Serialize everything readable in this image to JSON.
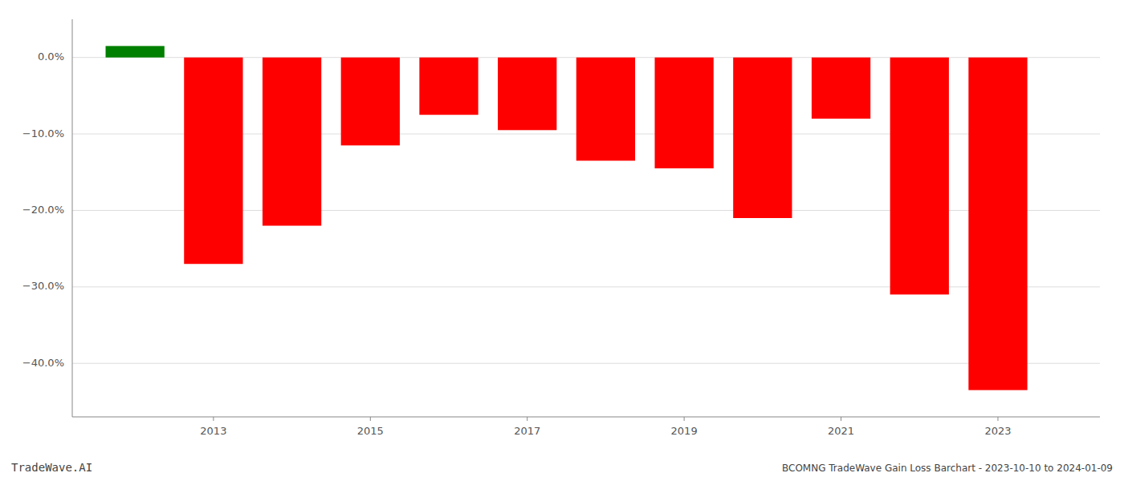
{
  "chart_data": {
    "type": "bar",
    "x": [
      2012,
      2013,
      2014,
      2015,
      2016,
      2017,
      2018,
      2019,
      2020,
      2021,
      2022,
      2023
    ],
    "values": [
      1.5,
      -27.0,
      -22.0,
      -11.5,
      -7.5,
      -9.5,
      -13.5,
      -14.5,
      -21.0,
      -8.0,
      -31.0,
      -43.5
    ],
    "colors": [
      "#008000",
      "#FF0000",
      "#FF0000",
      "#FF0000",
      "#FF0000",
      "#FF0000",
      "#FF0000",
      "#FF0000",
      "#FF0000",
      "#FF0000",
      "#FF0000",
      "#FF0000"
    ],
    "xlim": [
      2011.2,
      2024.3
    ],
    "xticks": [
      2013,
      2015,
      2017,
      2019,
      2021,
      2023
    ],
    "ylim": [
      -47,
      5
    ],
    "yticks": [
      {
        "value": 0.0,
        "label": "0.0%"
      },
      {
        "value": -10.0,
        "label": "−10.0%"
      },
      {
        "value": -20.0,
        "label": "−20.0%"
      },
      {
        "value": -30.0,
        "label": "−30.0%"
      },
      {
        "value": -40.0,
        "label": "−40.0%"
      }
    ],
    "grid": true,
    "annotations": [
      "TradeWave.AI",
      "BCOMNG TradeWave Gain Loss Barchart - 2023-10-10 to 2024-01-09"
    ]
  }
}
